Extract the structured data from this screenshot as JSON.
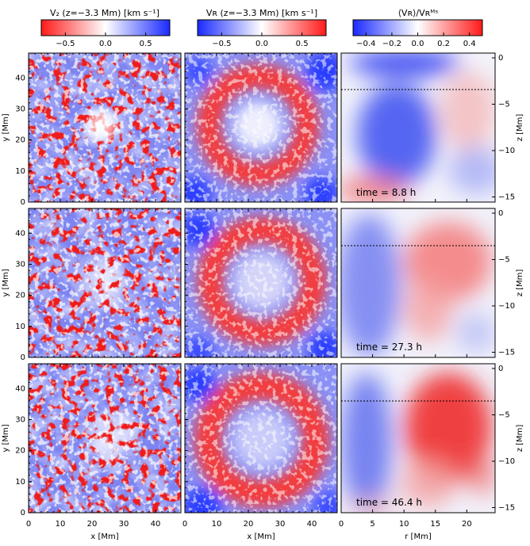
{
  "colorbars": [
    {
      "title": "V₂ (z=−3.3 Mm) [km s⁻¹]",
      "ticks": [
        "−0.5",
        "0.0",
        "0.5"
      ],
      "range": [
        -0.8,
        0.8
      ],
      "low_color": "#ff2020",
      "high_color": "#2030ff"
    },
    {
      "title": "Vʀ (z=−3.3 Mm) [km s⁻¹]",
      "ticks": [
        "−0.5",
        "0.0",
        "0.5"
      ],
      "range": [
        -0.8,
        0.8
      ],
      "low_color": "#2030ff",
      "high_color": "#ff2020"
    },
    {
      "title": "⟨Vʀ⟩/Vʀᴹˢ",
      "ticks": [
        "−0.4",
        "−0.2",
        "0.0",
        "0.2",
        "0.4"
      ],
      "range": [
        -0.5,
        0.5
      ],
      "low_color": "#2030ff",
      "high_color": "#ff2020"
    }
  ],
  "axes": {
    "y_label": "y [Mm]",
    "x_label": "x [Mm]",
    "r_label": "r [Mm]",
    "z_label": "z [Mm]",
    "xy_ticks": [
      "0",
      "10",
      "20",
      "30",
      "40"
    ],
    "y_ticks": [
      "0",
      "10",
      "20",
      "30",
      "40"
    ],
    "r_ticks": [
      "0",
      "5",
      "10",
      "15",
      "20"
    ],
    "z_ticks": [
      "0",
      "−5",
      "−10",
      "−15"
    ]
  },
  "rows": [
    {
      "time": "time = 8.8 h"
    },
    {
      "time": "time = 27.3 h"
    },
    {
      "time": "time = 46.4 h"
    }
  ],
  "dotted_line_depth_mm": -3.3
}
